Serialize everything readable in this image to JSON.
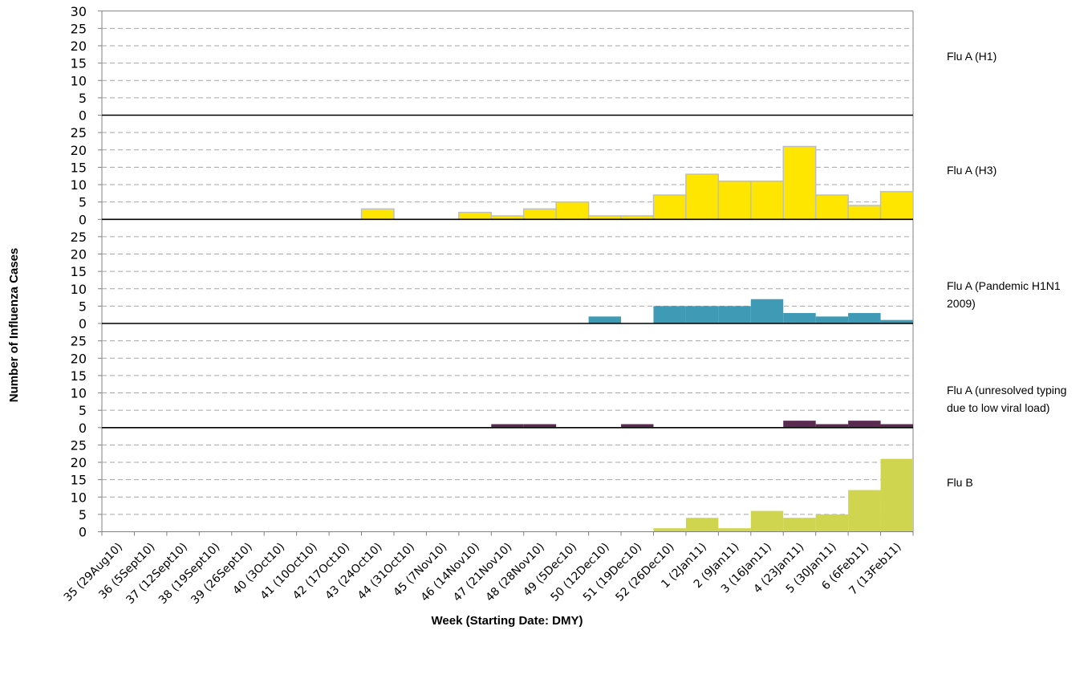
{
  "chart_data": {
    "type": "bar",
    "xlabel": "Week (Starting Date: DMY)",
    "ylabel": "Number of Influenza Cases",
    "categories": [
      "35 (29Aug10)",
      "36 (5Sept10)",
      "37 (12Sept10)",
      "38 (19Sept10)",
      "39 (26Sept10)",
      "40 (3Oct10)",
      "41 (10Oct10)",
      "42 (17Oct10)",
      "43 (24Oct10)",
      "44 (31Oct10)",
      "45 (7Nov10)",
      "46 (14Nov10)",
      "47 (21Nov10)",
      "48 (28Nov10)",
      "49 (5Dec10)",
      "50 (12Dec10)",
      "51 (19Dec10)",
      "52 (26Dec10)",
      "1 (2Jan11)",
      "2 (9Jan11)",
      "3 (16Jan11)",
      "4 (23Jan11)",
      "5 (30Jan11)",
      "6 (6Feb11)",
      "7 (13Feb11)"
    ],
    "grid": true,
    "series": [
      {
        "name": "Flu A (H1)",
        "label_lines": [
          "Flu A (H1)"
        ],
        "color": "#ffffff",
        "stroke": "none",
        "ylim": [
          0,
          30
        ],
        "ticks": [
          0,
          5,
          10,
          15,
          20,
          25,
          30
        ],
        "values": [
          0,
          0,
          0,
          0,
          0,
          0,
          0,
          0,
          0,
          0,
          0,
          0,
          0,
          0,
          0,
          0,
          0,
          0,
          0,
          0,
          0,
          0,
          0,
          0,
          0
        ]
      },
      {
        "name": "Flu A (H3)",
        "label_lines": [
          "Flu A (H3)"
        ],
        "color": "#ffe600",
        "stroke": "#bfbfbf",
        "ylim": [
          0,
          30
        ],
        "ticks": [
          0,
          5,
          10,
          15,
          20,
          25
        ],
        "values": [
          0,
          0,
          0,
          0,
          0,
          0,
          0,
          0,
          3,
          0,
          0,
          2,
          1,
          3,
          5,
          1,
          1,
          7,
          13,
          11,
          11,
          21,
          7,
          4,
          8
        ]
      },
      {
        "name": "Flu A (Pandemic H1N1 2009)",
        "label_lines": [
          "Flu A (Pandemic H1N1",
          "2009)"
        ],
        "color": "#3e9ab5",
        "stroke": "none",
        "ylim": [
          0,
          30
        ],
        "ticks": [
          0,
          5,
          10,
          15,
          20,
          25
        ],
        "values": [
          0,
          0,
          0,
          0,
          0,
          0,
          0,
          0,
          0,
          0,
          0,
          0,
          0,
          0,
          0,
          2,
          0,
          5,
          5,
          5,
          7,
          3,
          2,
          3,
          1
        ]
      },
      {
        "name": "Flu A (unresolved typing due to low viral load)",
        "label_lines": [
          "Flu A (unresolved typing",
          "due to low viral load)"
        ],
        "color": "#5b2a51",
        "stroke": "none",
        "ylim": [
          0,
          30
        ],
        "ticks": [
          0,
          5,
          10,
          15,
          20,
          25
        ],
        "values": [
          0,
          0,
          0,
          0,
          0,
          0,
          0,
          0,
          0,
          0,
          0,
          0,
          1,
          1,
          0,
          0,
          1,
          0,
          0,
          0,
          0,
          2,
          1,
          2,
          1
        ]
      },
      {
        "name": "Flu B",
        "label_lines": [
          "Flu B"
        ],
        "color": "#cfd54f",
        "stroke": "none",
        "ylim": [
          0,
          30
        ],
        "ticks": [
          0,
          5,
          10,
          15,
          20,
          25
        ],
        "values": [
          0,
          0,
          0,
          0,
          0,
          0,
          0,
          0,
          0,
          0,
          0,
          0,
          0,
          0,
          0,
          0,
          0,
          1,
          4,
          1,
          6,
          4,
          5,
          12,
          21
        ]
      }
    ]
  }
}
